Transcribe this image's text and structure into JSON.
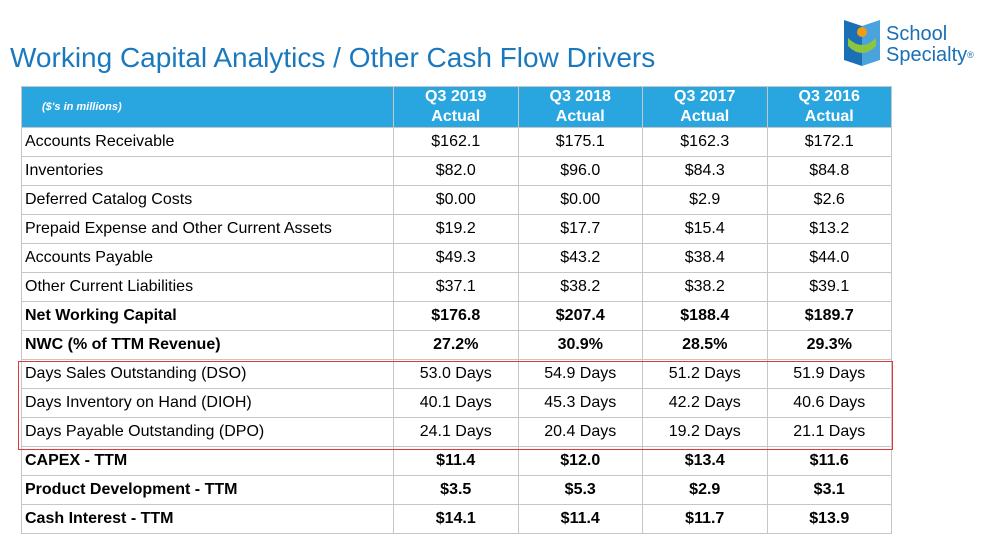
{
  "title": "Working Capital Analytics / Other Cash Flow Drivers",
  "logo": {
    "line1": "School",
    "line2": "Specialty",
    "reg": "®"
  },
  "colors": {
    "title": "#1a79be",
    "header_bg": "#29a6e0",
    "highlight": "#e23737"
  },
  "table": {
    "unit_label": "($'s in millions)",
    "columns": [
      {
        "period": "Q3 2019",
        "basis": "Actual"
      },
      {
        "period": "Q3 2018",
        "basis": "Actual"
      },
      {
        "period": "Q3 2017",
        "basis": "Actual"
      },
      {
        "period": "Q3 2016",
        "basis": "Actual"
      }
    ],
    "rows": [
      {
        "label": "Accounts Receivable",
        "values": [
          "$162.1",
          "$175.1",
          "$162.3",
          "$172.1"
        ],
        "bold": false
      },
      {
        "label": "Inventories",
        "values": [
          "$82.0",
          "$96.0",
          "$84.3",
          "$84.8"
        ],
        "bold": false
      },
      {
        "label": "Deferred Catalog Costs",
        "values": [
          "$0.00",
          "$0.00",
          "$2.9",
          "$2.6"
        ],
        "bold": false
      },
      {
        "label": "Prepaid Expense and Other Current Assets",
        "values": [
          "$19.2",
          "$17.7",
          "$15.4",
          "$13.2"
        ],
        "bold": false
      },
      {
        "label": "Accounts Payable",
        "values": [
          "$49.3",
          "$43.2",
          "$38.4",
          "$44.0"
        ],
        "bold": false
      },
      {
        "label": "Other Current Liabilities",
        "values": [
          "$37.1",
          "$38.2",
          "$38.2",
          "$39.1"
        ],
        "bold": false
      },
      {
        "label": "Net Working Capital",
        "values": [
          "$176.8",
          "$207.4",
          "$188.4",
          "$189.7"
        ],
        "bold": true
      },
      {
        "label": "NWC (% of TTM Revenue)",
        "values": [
          "27.2%",
          "30.9%",
          "28.5%",
          "29.3%"
        ],
        "bold": true
      },
      {
        "label": "Days Sales Outstanding (DSO)",
        "values": [
          "53.0 Days",
          "54.9 Days",
          "51.2 Days",
          "51.9 Days"
        ],
        "bold": false
      },
      {
        "label": "Days Inventory on Hand (DIOH)",
        "values": [
          "40.1 Days",
          "45.3 Days",
          "42.2 Days",
          "40.6 Days"
        ],
        "bold": false
      },
      {
        "label": "Days Payable Outstanding (DPO)",
        "values": [
          "24.1 Days",
          "20.4 Days",
          "19.2 Days",
          "21.1 Days"
        ],
        "bold": false
      },
      {
        "label": "CAPEX - TTM",
        "values": [
          "$11.4",
          "$12.0",
          "$13.4",
          "$11.6"
        ],
        "bold": true
      },
      {
        "label": "Product Development - TTM",
        "values": [
          "$3.5",
          "$5.3",
          "$2.9",
          "$3.1"
        ],
        "bold": true
      },
      {
        "label": "Cash Interest - TTM",
        "values": [
          "$14.1",
          "$11.4",
          "$11.7",
          "$13.9"
        ],
        "bold": true
      }
    ]
  }
}
